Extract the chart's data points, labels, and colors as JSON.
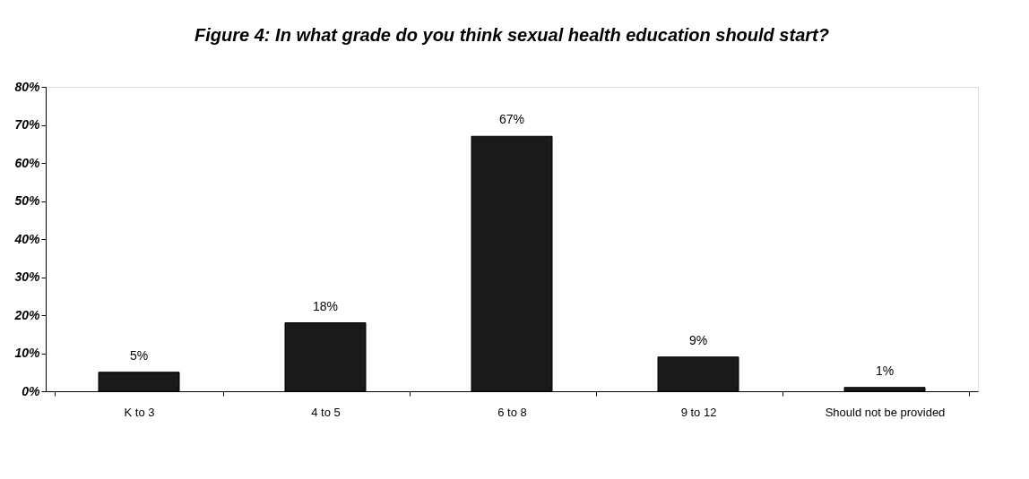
{
  "chart_data": {
    "type": "bar",
    "title": "Figure 4: In what grade do you think sexual health education should start?",
    "categories": [
      "K to 3",
      "4 to 5",
      "6 to 8",
      "9 to 12",
      "Should not be provided"
    ],
    "values": [
      5,
      18,
      67,
      9,
      1
    ],
    "value_labels": [
      "5%",
      "18%",
      "67%",
      "9%",
      "1%"
    ],
    "color": "#1a1a1a",
    "ylim": [
      0,
      80
    ],
    "yticks": [
      {
        "value": 0,
        "label": "0%"
      },
      {
        "value": 10,
        "label": "10%"
      },
      {
        "value": 20,
        "label": "20%"
      },
      {
        "value": 30,
        "label": "30%"
      },
      {
        "value": 40,
        "label": "40%"
      },
      {
        "value": 50,
        "label": "50%"
      },
      {
        "value": 60,
        "label": "60%"
      },
      {
        "value": 70,
        "label": "70%"
      },
      {
        "value": 80,
        "label": "80%"
      }
    ],
    "grid": false
  }
}
